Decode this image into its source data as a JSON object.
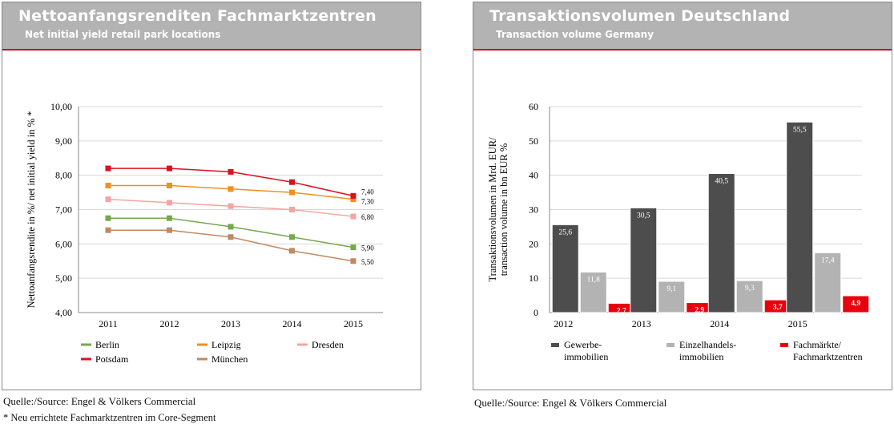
{
  "left_panel": {
    "title": "Nettoanfangsrenditen Fachmarktzentren",
    "subtitle": "Net initial yield retail park locations",
    "source": "Quelle:/Source: Engel & Völkers Commercial",
    "footnote": "* Neu errichtete Fachmarktzentren im Core-Segment"
  },
  "right_panel": {
    "title": "Transaktionsvolumen Deutschland",
    "subtitle": "Transaction volume Germany",
    "source": "Quelle:/Source: Engel & Völkers Commercial"
  },
  "chart_data": [
    {
      "type": "line",
      "ylabel": "Nettoanfangsrendite in %/ net initial yield in % *",
      "ylim": [
        4,
        10
      ],
      "y_ticks": [
        "4,00",
        "5,00",
        "6,00",
        "7,00",
        "8,00",
        "9,00",
        "10,00"
      ],
      "categories": [
        "2011",
        "2012",
        "2013",
        "2014",
        "2015"
      ],
      "grid": "horizontal",
      "legend_position": "bottom",
      "series": [
        {
          "name": "Berlin",
          "color": "#76a84f",
          "values": [
            6.75,
            6.75,
            6.5,
            6.2,
            5.9
          ],
          "end_label": "5,90"
        },
        {
          "name": "Leipzig",
          "color": "#f0901e",
          "values": [
            7.7,
            7.7,
            7.6,
            7.5,
            7.3
          ],
          "end_label": "7,30"
        },
        {
          "name": "Dresden",
          "color": "#f4a5a0",
          "values": [
            7.3,
            7.2,
            7.1,
            7.0,
            6.8
          ],
          "end_label": "6,80"
        },
        {
          "name": "Potsdam",
          "color": "#dd1020",
          "values": [
            8.2,
            8.2,
            8.1,
            7.8,
            7.4
          ],
          "end_label": "7,40"
        },
        {
          "name": "München",
          "color": "#bf8a61",
          "values": [
            6.4,
            6.4,
            6.2,
            5.8,
            5.5
          ],
          "end_label": "5,50"
        }
      ]
    },
    {
      "type": "bar",
      "ylabel": "Transaktionsvolumen in Mrd. EUR/ transaction volume in bn EUR %",
      "ylim": [
        0,
        60
      ],
      "y_ticks": [
        "0",
        "10",
        "20",
        "30",
        "40",
        "50",
        "60"
      ],
      "categories": [
        "2012",
        "2013",
        "2014",
        "2015"
      ],
      "grid": "horizontal",
      "legend_position": "bottom",
      "series": [
        {
          "name": "Gewerbe-immobilien",
          "legend_lines": [
            "Gewerbe-",
            "immobilien"
          ],
          "color": "#4d4d4d",
          "values": [
            25.6,
            30.5,
            40.5,
            55.5
          ],
          "labels": [
            "25,6",
            "30,5",
            "40,5",
            "55,5"
          ]
        },
        {
          "name": "Einzelhandels-immobilien",
          "legend_lines": [
            "Einzelhandels-",
            "immobilien"
          ],
          "color": "#b3b3b3",
          "values": [
            11.8,
            9.1,
            9.3,
            17.4
          ],
          "labels": [
            "11,8",
            "9,1",
            "9,3",
            "17,4"
          ]
        },
        {
          "name": "Fachmärkte/ Fachmarktzentren",
          "legend_lines": [
            "Fachmärkte/",
            "Fachmarktzentren"
          ],
          "color": "#e8000d",
          "values": [
            2.7,
            2.9,
            3.7,
            4.9
          ],
          "labels": [
            "2,7",
            "2,9",
            "3,7",
            "4,9"
          ]
        }
      ]
    }
  ]
}
